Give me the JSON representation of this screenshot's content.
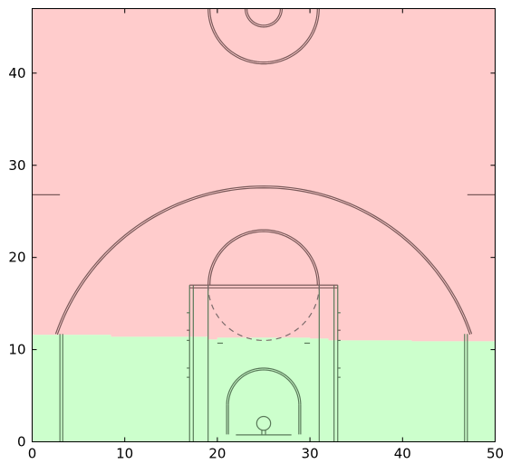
{
  "chart_data": {
    "type": "area",
    "title": "",
    "xlabel": "",
    "ylabel": "",
    "xlim": [
      0,
      50
    ],
    "ylim": [
      0,
      47
    ],
    "xticks": [
      0,
      10,
      20,
      30,
      40,
      50
    ],
    "yticks": [
      0,
      10,
      20,
      30,
      40
    ],
    "grid": false,
    "legend": "none",
    "boundary": {
      "x": [
        0,
        8.5,
        8.5,
        19,
        19,
        20,
        20,
        30,
        30,
        32,
        32,
        41,
        41,
        50
      ],
      "y": [
        11.6,
        11.6,
        11.4,
        11.4,
        11.1,
        11.1,
        11.3,
        11.3,
        11.2,
        11.2,
        11.0,
        11.0,
        10.9,
        10.9
      ]
    },
    "regions": [
      {
        "position": "above",
        "color": "#ffcccc"
      },
      {
        "position": "below",
        "color": "#ccffcc"
      }
    ],
    "court_line_color": "#7a5a5a",
    "court_line_color_lower": "#5a7a5a"
  }
}
